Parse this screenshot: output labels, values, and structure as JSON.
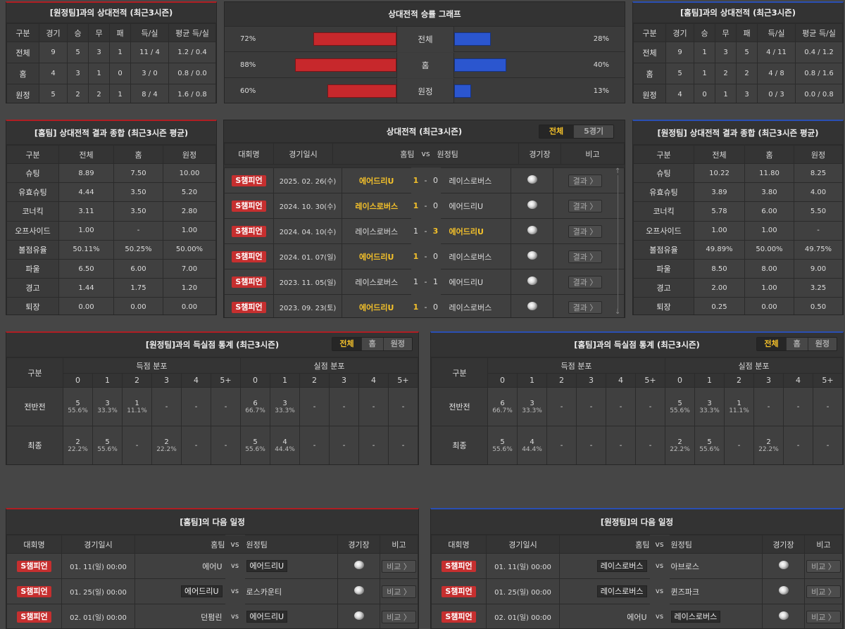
{
  "h2h_away": {
    "title": "[원정팀]과의 상대전적 (최근3시즌)",
    "headers": [
      "구분",
      "경기",
      "승",
      "무",
      "패",
      "득/실",
      "평균 득/실"
    ],
    "rows": [
      [
        "전체",
        "9",
        "5",
        "3",
        "1",
        "11 / 4",
        "1.2 / 0.4"
      ],
      [
        "홈",
        "4",
        "3",
        "1",
        "0",
        "3 / 0",
        "0.8 / 0.0"
      ],
      [
        "원정",
        "5",
        "2",
        "2",
        "1",
        "8 / 4",
        "1.6 / 0.8"
      ]
    ]
  },
  "graph": {
    "title": "상대전적 승률 그래프",
    "rows": [
      {
        "label": "전체",
        "left": "72%",
        "right": "28%",
        "left_val": 72,
        "right_val": 28
      },
      {
        "label": "홈",
        "left": "88%",
        "right": "40%",
        "left_val": 88,
        "right_val": 40
      },
      {
        "label": "원정",
        "left": "60%",
        "right": "13%",
        "left_val": 60,
        "right_val": 13
      }
    ]
  },
  "h2h_home": {
    "title": "[홈팀]과의 상대전적 (최근3시즌)",
    "headers": [
      "구분",
      "경기",
      "승",
      "무",
      "패",
      "득/실",
      "평균 득/실"
    ],
    "rows": [
      [
        "전체",
        "9",
        "1",
        "3",
        "5",
        "4 / 11",
        "0.4 / 1.2"
      ],
      [
        "홈",
        "5",
        "1",
        "2",
        "2",
        "4 / 8",
        "0.8 / 1.6"
      ],
      [
        "원정",
        "4",
        "0",
        "1",
        "3",
        "0 / 3",
        "0.0 / 0.8"
      ]
    ]
  },
  "summary_home": {
    "title": "[홈팀] 상대전적 결과 종합 (최근3시즌 평균)",
    "headers": [
      "구분",
      "전체",
      "홈",
      "원정"
    ],
    "rows": [
      [
        "슈팅",
        "8.89",
        "7.50",
        "10.00"
      ],
      [
        "유효슈팅",
        "4.44",
        "3.50",
        "5.20"
      ],
      [
        "코너킥",
        "3.11",
        "3.50",
        "2.80"
      ],
      [
        "오프사이드",
        "1.00",
        "-",
        "1.00"
      ],
      [
        "볼점유율",
        "50.11%",
        "50.25%",
        "50.00%"
      ],
      [
        "파울",
        "6.50",
        "6.00",
        "7.00"
      ],
      [
        "경고",
        "1.44",
        "1.75",
        "1.20"
      ],
      [
        "퇴장",
        "0.00",
        "0.00",
        "0.00"
      ]
    ]
  },
  "record": {
    "title": "상대전적 (최근3시즌)",
    "tabs": [
      "전체",
      "5경기"
    ],
    "headers": {
      "league": "대회명",
      "date": "경기일시",
      "home": "홈팀",
      "vs": "vs",
      "away": "원정팀",
      "venue": "경기장",
      "note": "비고"
    },
    "btn": "결과 〉",
    "rows": [
      {
        "league": "S챔피언",
        "date": "2025. 02. 26(수)",
        "home": "에어드리U",
        "hs": "1",
        "as": "0",
        "away": "레이스로버스",
        "win": "home"
      },
      {
        "league": "S챔피언",
        "date": "2024. 10. 30(수)",
        "home": "레이스로버스",
        "hs": "1",
        "as": "0",
        "away": "에어드리U",
        "win": "home"
      },
      {
        "league": "S챔피언",
        "date": "2024. 04. 10(수)",
        "home": "레이스로버스",
        "hs": "1",
        "as": "3",
        "away": "에어드리U",
        "win": "away"
      },
      {
        "league": "S챔피언",
        "date": "2024. 01. 07(일)",
        "home": "에어드리U",
        "hs": "1",
        "as": "0",
        "away": "레이스로버스",
        "win": "home"
      },
      {
        "league": "S챔피언",
        "date": "2023. 11. 05(일)",
        "home": "레이스로버스",
        "hs": "1",
        "as": "1",
        "away": "에어드리U",
        "win": "none"
      },
      {
        "league": "S챔피언",
        "date": "2023. 09. 23(토)",
        "home": "에어드리U",
        "hs": "1",
        "as": "0",
        "away": "레이스로버스",
        "win": "home"
      }
    ]
  },
  "summary_away": {
    "title": "[원정팀] 상대전적 결과 종합 (최근3시즌 평균)",
    "headers": [
      "구분",
      "전체",
      "홈",
      "원정"
    ],
    "rows": [
      [
        "슈팅",
        "10.22",
        "11.80",
        "8.25"
      ],
      [
        "유효슈팅",
        "3.89",
        "3.80",
        "4.00"
      ],
      [
        "코너킥",
        "5.78",
        "6.00",
        "5.50"
      ],
      [
        "오프사이드",
        "1.00",
        "1.00",
        "-"
      ],
      [
        "볼점유율",
        "49.89%",
        "50.00%",
        "49.75%"
      ],
      [
        "파울",
        "8.50",
        "8.00",
        "9.00"
      ],
      [
        "경고",
        "2.00",
        "1.00",
        "3.25"
      ],
      [
        "퇴장",
        "0.25",
        "0.00",
        "0.50"
      ]
    ]
  },
  "goals_away": {
    "title": "[원정팀]과의 득실점 통계 (최근3시즌)",
    "tabs": [
      "전체",
      "홈",
      "원정"
    ],
    "col_label": "구분",
    "scored": "득점 분포",
    "conceded": "실점 분포",
    "buckets": [
      "0",
      "1",
      "2",
      "3",
      "4",
      "5+"
    ],
    "rows": [
      {
        "label": "전반전",
        "scored": [
          [
            "5",
            "55.6%"
          ],
          [
            "3",
            "33.3%"
          ],
          [
            "1",
            "11.1%"
          ],
          [
            "-",
            ""
          ],
          [
            "-",
            ""
          ],
          [
            "-",
            ""
          ]
        ],
        "conceded": [
          [
            "6",
            "66.7%"
          ],
          [
            "3",
            "33.3%"
          ],
          [
            "-",
            ""
          ],
          [
            "-",
            ""
          ],
          [
            "-",
            ""
          ],
          [
            "-",
            ""
          ]
        ]
      },
      {
        "label": "최종",
        "scored": [
          [
            "2",
            "22.2%"
          ],
          [
            "5",
            "55.6%"
          ],
          [
            "-",
            ""
          ],
          [
            "2",
            "22.2%"
          ],
          [
            "-",
            ""
          ],
          [
            "-",
            ""
          ]
        ],
        "conceded": [
          [
            "5",
            "55.6%"
          ],
          [
            "4",
            "44.4%"
          ],
          [
            "-",
            ""
          ],
          [
            "-",
            ""
          ],
          [
            "-",
            ""
          ],
          [
            "-",
            ""
          ]
        ]
      }
    ]
  },
  "goals_home": {
    "title": "[홈팀]과의 득실점 통계 (최근3시즌)",
    "tabs": [
      "전체",
      "홈",
      "원정"
    ],
    "col_label": "구분",
    "scored": "득점 분포",
    "conceded": "실점 분포",
    "buckets": [
      "0",
      "1",
      "2",
      "3",
      "4",
      "5+"
    ],
    "rows": [
      {
        "label": "전반전",
        "scored": [
          [
            "6",
            "66.7%"
          ],
          [
            "3",
            "33.3%"
          ],
          [
            "-",
            ""
          ],
          [
            "-",
            ""
          ],
          [
            "-",
            ""
          ],
          [
            "-",
            ""
          ]
        ],
        "conceded": [
          [
            "5",
            "55.6%"
          ],
          [
            "3",
            "33.3%"
          ],
          [
            "1",
            "11.1%"
          ],
          [
            "-",
            ""
          ],
          [
            "-",
            ""
          ],
          [
            "-",
            ""
          ]
        ]
      },
      {
        "label": "최종",
        "scored": [
          [
            "5",
            "55.6%"
          ],
          [
            "4",
            "44.4%"
          ],
          [
            "-",
            ""
          ],
          [
            "-",
            ""
          ],
          [
            "-",
            ""
          ],
          [
            "-",
            ""
          ]
        ],
        "conceded": [
          [
            "2",
            "22.2%"
          ],
          [
            "5",
            "55.6%"
          ],
          [
            "-",
            ""
          ],
          [
            "2",
            "22.2%"
          ],
          [
            "-",
            ""
          ],
          [
            "-",
            ""
          ]
        ]
      }
    ]
  },
  "next_home": {
    "title": "[홈팀]의 다음 일정",
    "headers": {
      "league": "대회명",
      "date": "경기일시",
      "home": "홈팀",
      "vs": "vs",
      "away": "원정팀",
      "venue": "경기장",
      "note": "비고"
    },
    "btn": "비교 〉",
    "rows": [
      {
        "league": "S챔피언",
        "date": "01. 11(일) 00:00",
        "home": "에어U",
        "away": "에어드리U",
        "box": "away"
      },
      {
        "league": "S챔피언",
        "date": "01. 25(일) 00:00",
        "home": "에어드리U",
        "away": "로스카운티",
        "box": "home"
      },
      {
        "league": "S챔피언",
        "date": "02. 01(일) 00:00",
        "home": "던펌린",
        "away": "에어드리U",
        "box": "away"
      }
    ]
  },
  "next_away": {
    "title": "[원정팀]의 다음 일정",
    "headers": {
      "league": "대회명",
      "date": "경기일시",
      "home": "홈팀",
      "vs": "vs",
      "away": "원정팀",
      "venue": "경기장",
      "note": "비고"
    },
    "btn": "비교 〉",
    "rows": [
      {
        "league": "S챔피언",
        "date": "01. 11(일) 00:00",
        "home": "레이스로버스",
        "away": "아브로스",
        "box": "home"
      },
      {
        "league": "S챔피언",
        "date": "01. 25(일) 00:00",
        "home": "레이스로버스",
        "away": "퀸즈파크",
        "box": "home"
      },
      {
        "league": "S챔피언",
        "date": "02. 01(일) 00:00",
        "home": "에어U",
        "away": "레이스로버스",
        "box": "away"
      }
    ]
  },
  "icons": {
    "venue": "stadium-icon",
    "scroll_up": "arrow-up-icon",
    "scroll_down": "arrow-down-icon"
  },
  "colors": {
    "home_bar": "#c7282c",
    "away_bar": "#2b56cf",
    "accent": "#f4c12a",
    "badge": "#c62f2f"
  }
}
